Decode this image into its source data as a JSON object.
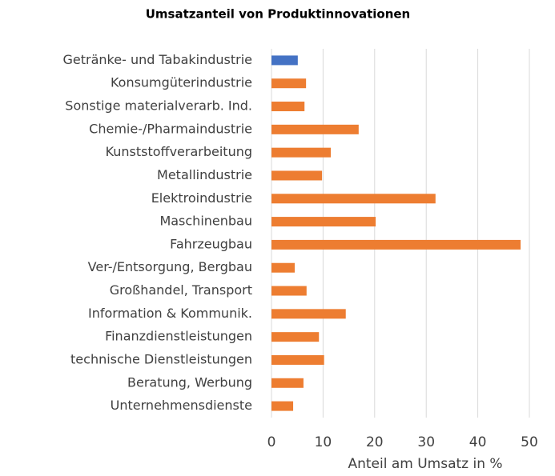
{
  "chart_data": {
    "type": "barh",
    "title": "Umsatzanteil von Produktinnovationen",
    "x_label": "Anteil am Umsatz in %",
    "categories": [
      "Getränke- und Tabakindustrie",
      "Konsumgüterindustrie",
      "Sonstige materialverarb. Ind.",
      "Chemie-/Pharmaindustrie",
      "Kunststoffverarbeitung",
      "Metallindustrie",
      "Elektroindustrie",
      "Maschinenbau",
      "Fahrzeugbau",
      "Ver-/Entsorgung, Bergbau",
      "Großhandel, Transport",
      "Information & Kommunik.",
      "Finanzdienstleistungen",
      "technische Dienstleistungen",
      "Beratung, Werbung",
      "Unternehmensdienste"
    ],
    "values": [
      5.1,
      6.7,
      6.4,
      16.9,
      11.5,
      9.8,
      31.8,
      20.2,
      48.3,
      4.5,
      6.8,
      14.4,
      9.2,
      10.2,
      6.2,
      4.2
    ],
    "colors": [
      "#4472c4",
      "#ed7d31",
      "#ed7d31",
      "#ed7d31",
      "#ed7d31",
      "#ed7d31",
      "#ed7d31",
      "#ed7d31",
      "#ed7d31",
      "#ed7d31",
      "#ed7d31",
      "#ed7d31",
      "#ed7d31",
      "#ed7d31",
      "#ed7d31",
      "#ed7d31"
    ],
    "xlim": [
      0,
      50
    ],
    "xticks": [
      0,
      10,
      20,
      30,
      40,
      50
    ],
    "grid": true
  }
}
